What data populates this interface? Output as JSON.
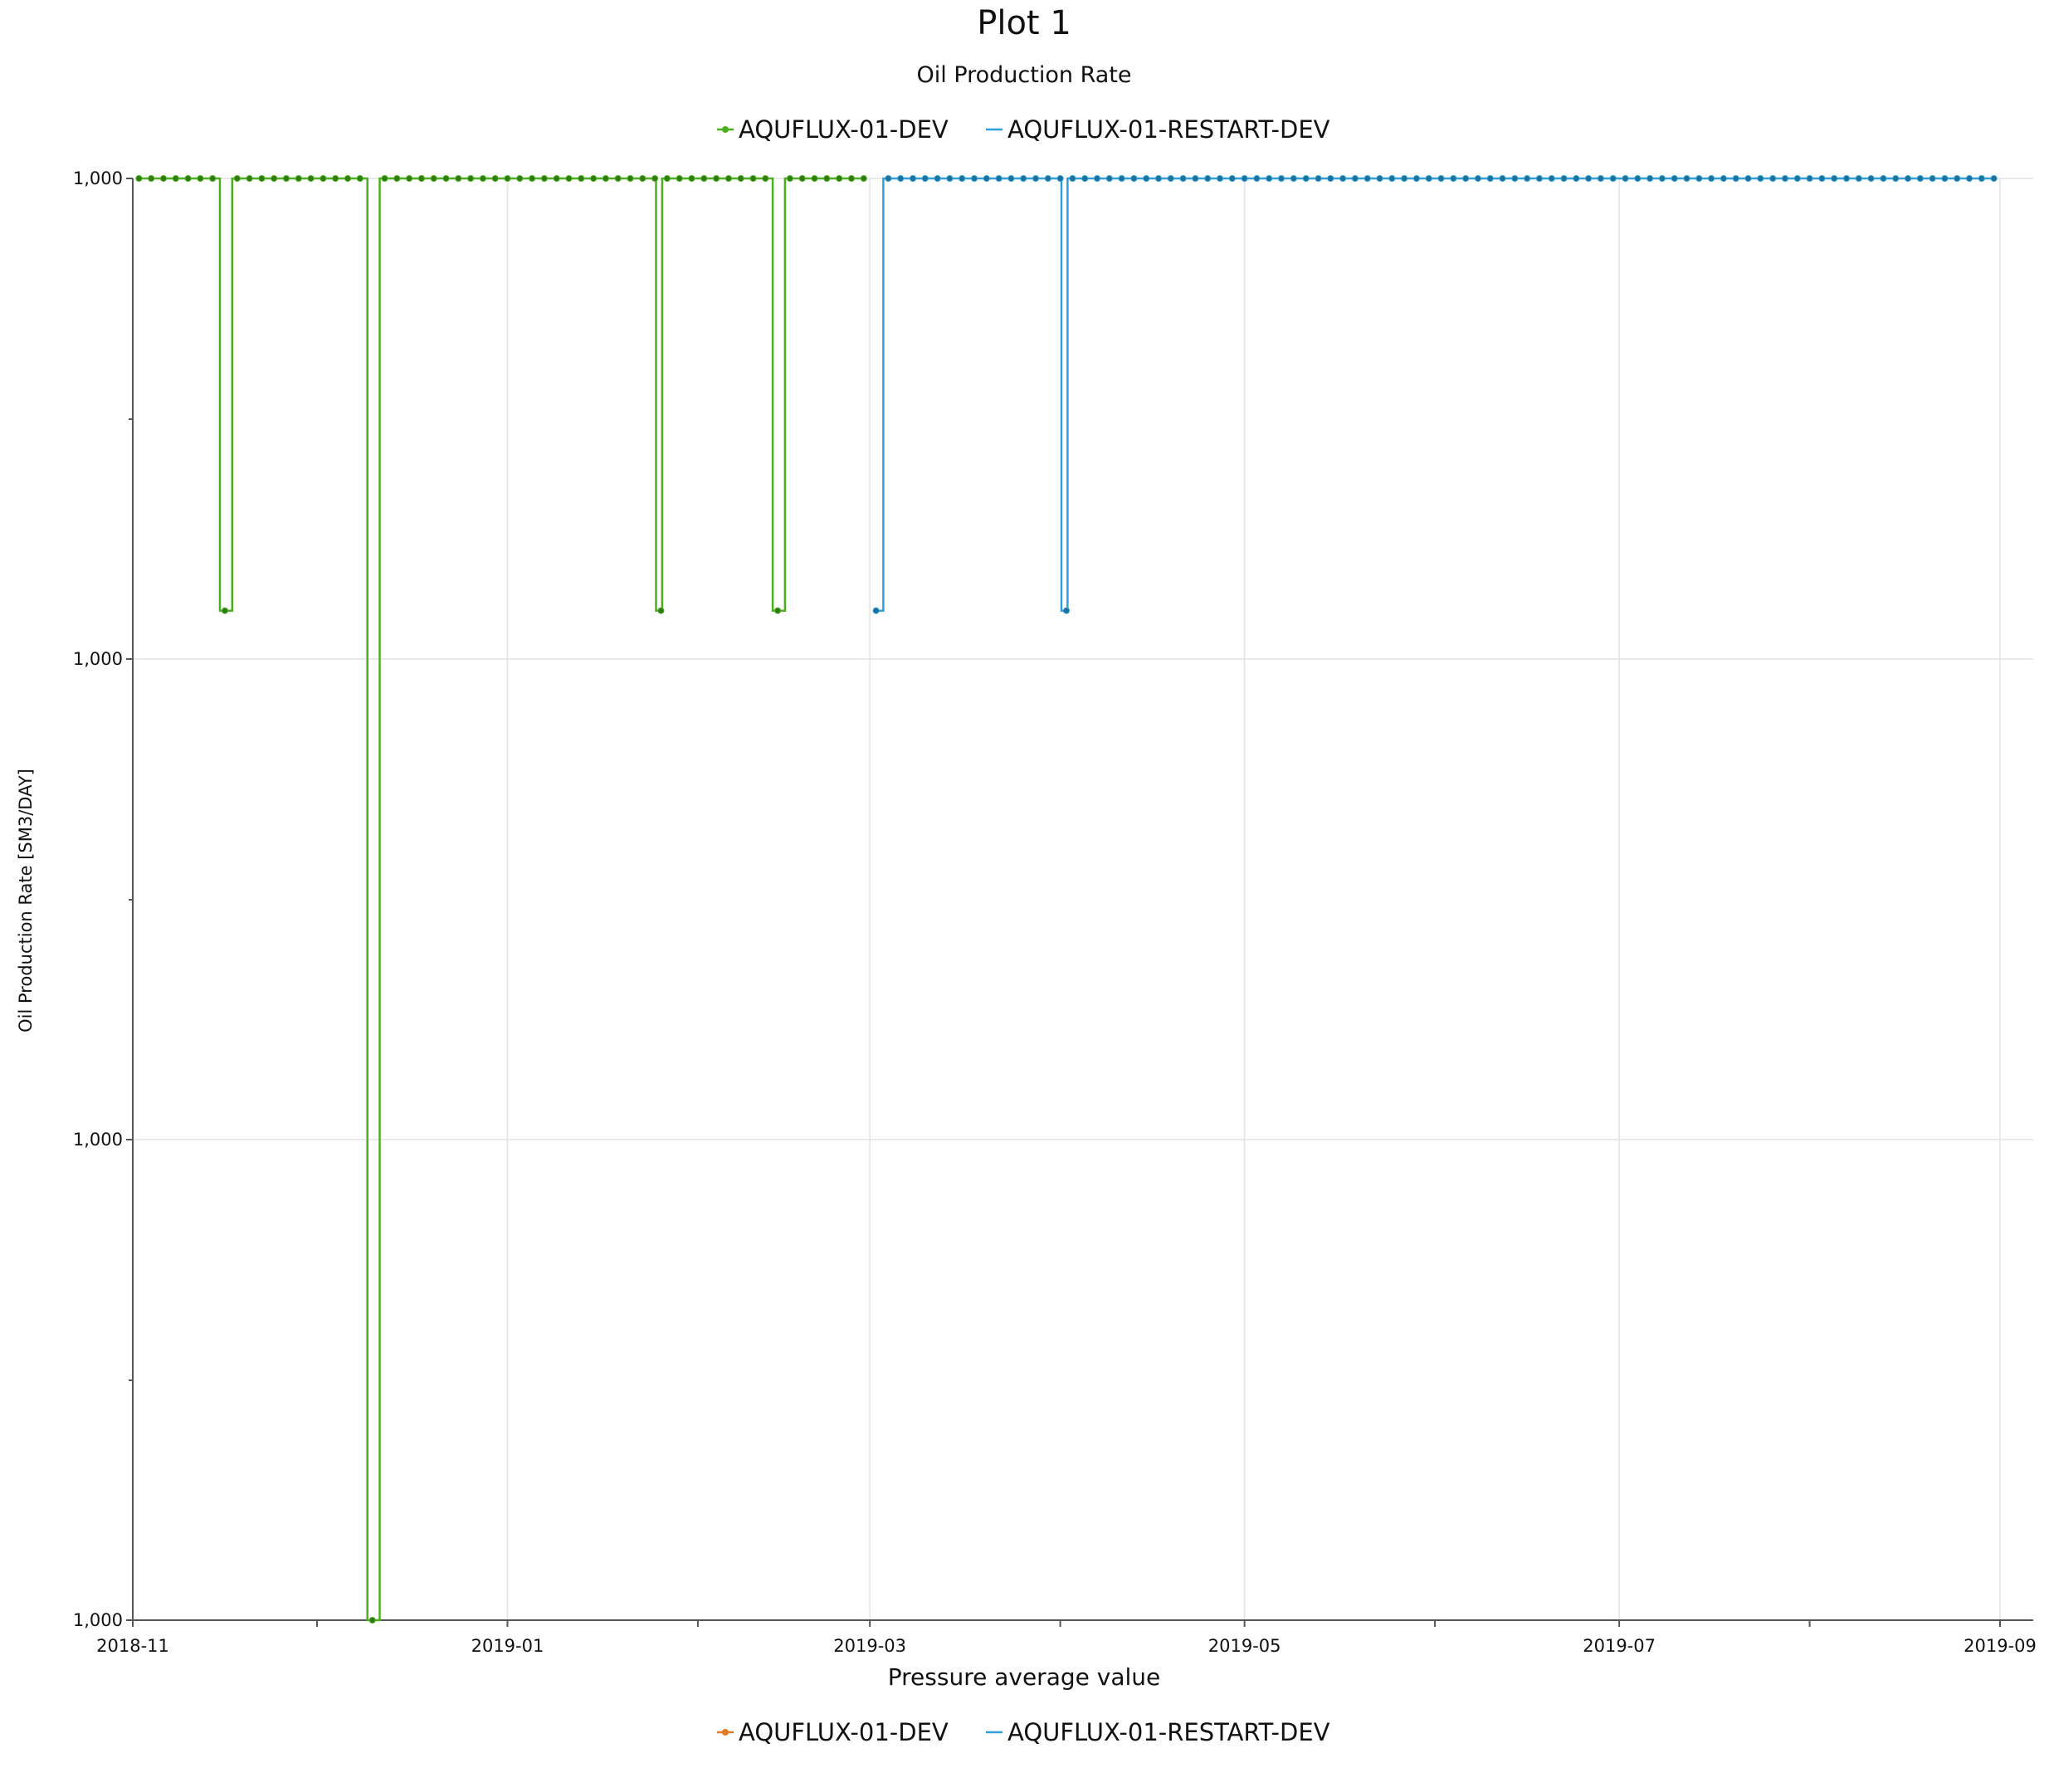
{
  "chart_data": {
    "type": "line",
    "title": "Plot 1",
    "subtitle": "Oil Production Rate",
    "xlabel": "Pressure average value",
    "ylabel": "Oil Production Rate [SM3/DAY]",
    "x_ticks": [
      "2018-11",
      "2019-01",
      "2019-03",
      "2019-05",
      "2019-07",
      "2019-09"
    ],
    "x_range": [
      "2018-11-01",
      "2019-09-01"
    ],
    "y_scale": "log",
    "y_ticks": [
      "1,000",
      "1,000",
      "1,000",
      "1,000"
    ],
    "grid": true,
    "legend_top": [
      {
        "name": "AQUFLUX-01-DEV",
        "color": "#4caf1f",
        "marker": "dot"
      },
      {
        "name": "AQUFLUX-01-RESTART-DEV",
        "color": "#2e9fd8",
        "marker": "line"
      }
    ],
    "legend_bottom": [
      {
        "name": "AQUFLUX-01-DEV",
        "color": "#e07b24",
        "marker": "dot"
      },
      {
        "name": "AQUFLUX-01-RESTART-DEV",
        "color": "#2e9fd8",
        "marker": "line"
      }
    ],
    "series": [
      {
        "name": "AQUFLUX-01-DEV",
        "color": "#4caf1f",
        "marker_color": "#2f7a12",
        "step": "left",
        "start": "2018-11-02",
        "end": "2019-03-01",
        "step_days": 2,
        "baseline": 1000,
        "dips": [
          {
            "date": "2018-11-16",
            "value": 999.4
          },
          {
            "date": "2018-12-10",
            "value": 998.0
          },
          {
            "date": "2019-01-26",
            "value": 999.4
          },
          {
            "date": "2019-02-14",
            "value": 999.4
          }
        ]
      },
      {
        "name": "AQUFLUX-01-RESTART-DEV",
        "color": "#2e9fd8",
        "marker_color": "#1f6f99",
        "step": "left",
        "start": "2019-03-02",
        "end": "2019-09-01",
        "step_days": 2,
        "baseline": 1000,
        "dips": [
          {
            "date": "2019-03-02",
            "value": 999.4
          },
          {
            "date": "2019-04-02",
            "value": 999.4
          }
        ]
      }
    ]
  }
}
